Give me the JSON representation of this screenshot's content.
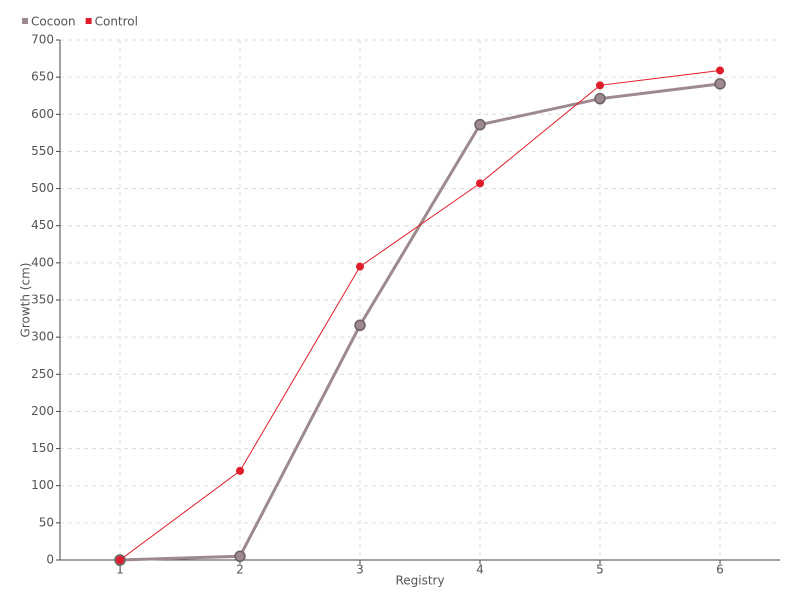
{
  "chart_data": {
    "type": "line",
    "x_label": "Registry",
    "y_label": "Growth (cm)",
    "categories": [
      "1",
      "2",
      "3",
      "4",
      "5",
      "6"
    ],
    "series": [
      {
        "name": "Cocoon",
        "color": "#9c8a8e",
        "values": [
          0,
          5,
          316,
          586,
          621,
          641
        ]
      },
      {
        "name": "Control",
        "color": "#e01e2b",
        "values": [
          0,
          120,
          395,
          507,
          639,
          659
        ]
      }
    ],
    "ylim": [
      0,
      700
    ],
    "yticks": [
      0,
      50,
      100,
      150,
      200,
      250,
      300,
      350,
      400,
      450,
      500,
      550,
      600,
      650,
      700
    ],
    "grid": true,
    "legend": "top-left"
  }
}
